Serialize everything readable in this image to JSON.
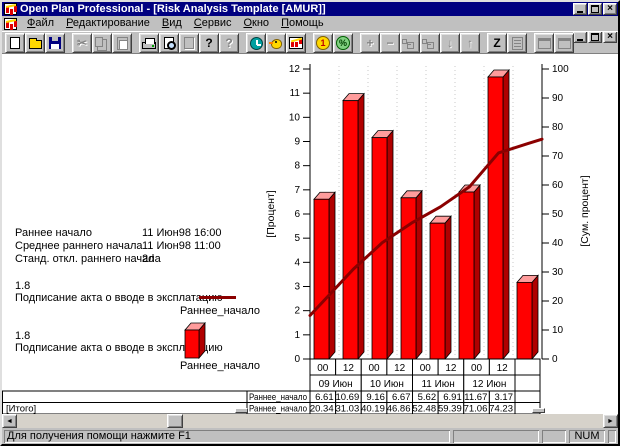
{
  "window": {
    "title": "Open Plan Professional - [Risk Analysis Template [AMUR]]"
  },
  "menu": {
    "items": [
      "Файл",
      "Редактирование",
      "Вид",
      "Сервис",
      "Окно",
      "Помощь"
    ]
  },
  "icons": {
    "close": "×",
    "cut": "✂",
    "help": "?",
    "context_help": "?",
    "plus": "+",
    "minus": "−",
    "down": "↓",
    "up": "↑",
    "sort": "Z",
    "coin_one": "1",
    "coin_percent": "%",
    "scroll_left": "◄",
    "scroll_right": "►"
  },
  "info_panel": {
    "rows": [
      {
        "label": "Раннее начало",
        "value": "11 Июн98 16:00"
      },
      {
        "label": "Среднее раннего начала",
        "value": "11 Июн98 11:00"
      },
      {
        "label": "Станд. откл. раннего начала",
        "value": "2d"
      }
    ]
  },
  "legend": [
    {
      "value": "1.8",
      "label": "Подписание акта о вводе в эксплатацию",
      "series": "Раннее_начало",
      "sample": "line"
    },
    {
      "value": "1.8",
      "label": "Подписание акта о вводе в эксплатацию",
      "series": "Раннее_начало",
      "sample": "bar"
    }
  ],
  "chart_data": {
    "type": "bar",
    "title": "",
    "left_axis": {
      "label": "[Процент]",
      "min": 0,
      "max": 12,
      "step": 1
    },
    "right_axis": {
      "label": "[Сум. процент]",
      "min": 0,
      "max": 100,
      "step": 10
    },
    "x": {
      "hours": [
        "00",
        "12",
        "00",
        "12",
        "00",
        "12",
        "00",
        "12"
      ],
      "days": [
        "09 Июн",
        "10 Июн",
        "11 Июн",
        "12 Июн"
      ]
    },
    "series": [
      {
        "name": "Раннее_начало",
        "type": "bar",
        "axis": "left",
        "color": "#ff0000",
        "color_top": "#ff9c9c",
        "color_side": "#b00000",
        "values": [
          6.61,
          10.69,
          9.16,
          6.67,
          5.62,
          6.91,
          11.67,
          3.17
        ]
      },
      {
        "name": "Раннее_начало",
        "type": "line",
        "axis": "right",
        "color": "#8b0000",
        "values": [
          20.34,
          31.03,
          40.19,
          46.86,
          52.48,
          59.39,
          71.06,
          74.23
        ]
      }
    ],
    "grid": "vertical-dotted",
    "legend_position": "left"
  },
  "table": {
    "rows": [
      {
        "group": "",
        "name": "Раннее_начало"
      },
      {
        "group": "[Итого]",
        "name": "Раннее_начало"
      }
    ]
  },
  "status": {
    "message": "Для получения помощи нажмите F1",
    "num": "NUM"
  }
}
